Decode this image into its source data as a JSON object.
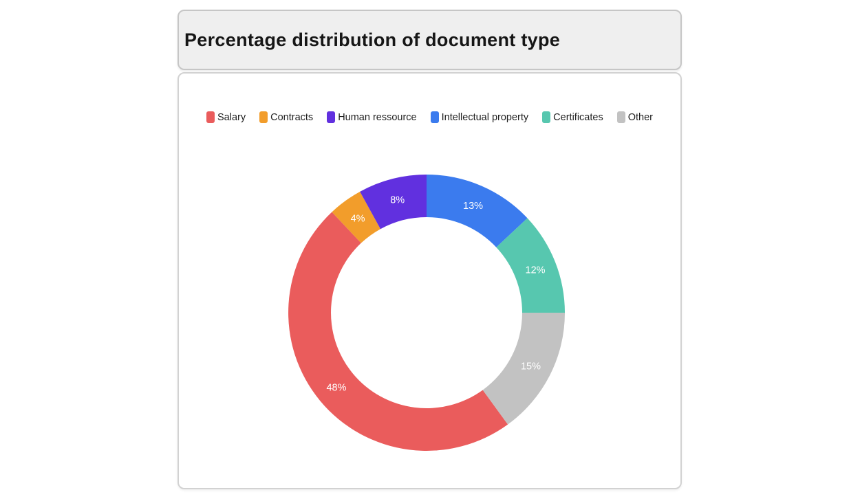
{
  "header": {
    "title": "Percentage distribution of document type"
  },
  "chart_data": {
    "type": "pie",
    "subtype": "donut",
    "title": "Percentage distribution of document type",
    "unit": "%",
    "legend_position": "top",
    "direction": "clockwise",
    "start_angle_deg": 144,
    "inner_radius_ratio": 0.69,
    "data_label_color": "#ffffff",
    "slices": [
      {
        "label": "Salary",
        "value": 48,
        "display": "48%",
        "color": "#ea5c5c"
      },
      {
        "label": "Contracts",
        "value": 4,
        "display": "4%",
        "color": "#f29d2b"
      },
      {
        "label": "Human ressource",
        "value": 8,
        "display": "8%",
        "color": "#6130df"
      },
      {
        "label": "Intellectual property",
        "value": 13,
        "display": "13%",
        "color": "#3b7bee"
      },
      {
        "label": "Certificates",
        "value": 12,
        "display": "12%",
        "color": "#57c7af"
      },
      {
        "label": "Other",
        "value": 15,
        "display": "15%",
        "color": "#c2c2c2"
      }
    ]
  }
}
